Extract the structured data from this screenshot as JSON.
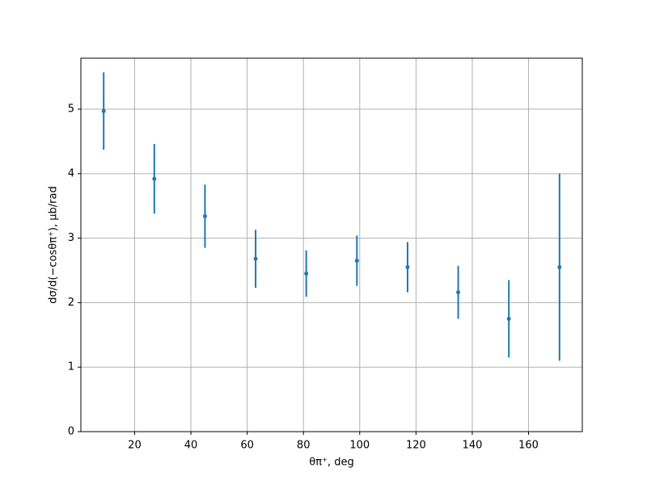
{
  "chart_data": {
    "type": "scatter",
    "x_label": "θπ⁺, deg",
    "y_label": "dσ/d(−cosθπ⁺), μb/rad",
    "x": [
      9,
      27,
      45,
      63,
      81,
      99,
      117,
      135,
      153,
      171
    ],
    "values": [
      4.97,
      3.92,
      3.34,
      2.68,
      2.45,
      2.65,
      2.55,
      2.16,
      1.75,
      2.55
    ],
    "errors": [
      0.6,
      0.54,
      0.49,
      0.45,
      0.36,
      0.39,
      0.39,
      0.41,
      0.6,
      1.45
    ],
    "color": "#1f77b4",
    "xlim": [
      0.9,
      179.1
    ],
    "xticks": [
      20,
      40,
      60,
      80,
      100,
      120,
      140,
      160
    ],
    "ylim": [
      0,
      5.79
    ],
    "yticks": [
      0,
      1,
      2,
      3,
      4,
      5
    ],
    "grid": true
  }
}
